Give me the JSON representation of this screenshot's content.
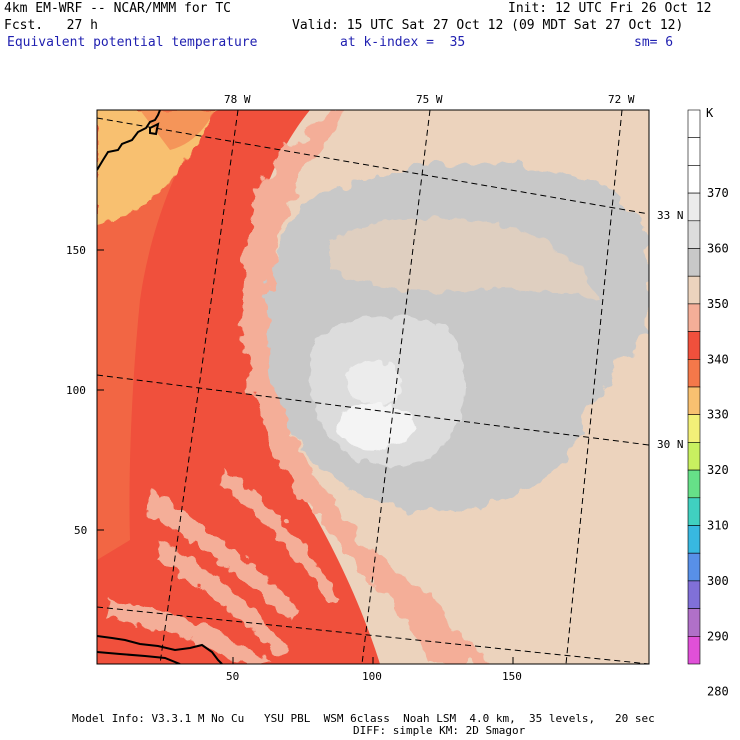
{
  "header": {
    "model_title": "4km EM-WRF -- NCAR/MMM for TC",
    "init_time": "Init: 12 UTC Fri 26 Oct 12",
    "forecast_hour": "Fcst.   27 h",
    "valid_time": "Valid: 15 UTC Sat 27 Oct 12 (09 MDT Sat 27 Oct 12)",
    "field_name": "Equivalent potential temperature",
    "k_index": "at k-index =  35",
    "smoothing": "sm= 6"
  },
  "map": {
    "lon_labels": [
      "78 W",
      "75 W",
      "72 W"
    ],
    "lat_labels": [
      "33 N",
      "30 N"
    ],
    "y_ticks": [
      "150",
      "100",
      "50"
    ],
    "x_ticks": [
      "50",
      "100",
      "150"
    ]
  },
  "colorbar": {
    "unit": "K",
    "labels": [
      "370",
      "360",
      "350",
      "340",
      "330",
      "320",
      "310",
      "300",
      "290",
      "280"
    ],
    "colors": [
      "#ffffff",
      "#ffffff",
      "#ffffff",
      "#ececec",
      "#dcdcdc",
      "#c8c8c8",
      "#ecd3bd",
      "#f4ae98",
      "#f0503c",
      "#f4784a",
      "#f8c070",
      "#f2f078",
      "#c8f060",
      "#66e088",
      "#40d0c0",
      "#38b8e0",
      "#5890e8",
      "#8070d8",
      "#b070c8",
      "#e050d8"
    ]
  },
  "footer": {
    "line1": "Model Info: V3.3.1 M No Cu   YSU PBL  WSM 6class  Noah LSM  4.0 km,  35 levels,   20 sec",
    "line2": "DIFF: simple KM: 2D Smagor"
  }
}
